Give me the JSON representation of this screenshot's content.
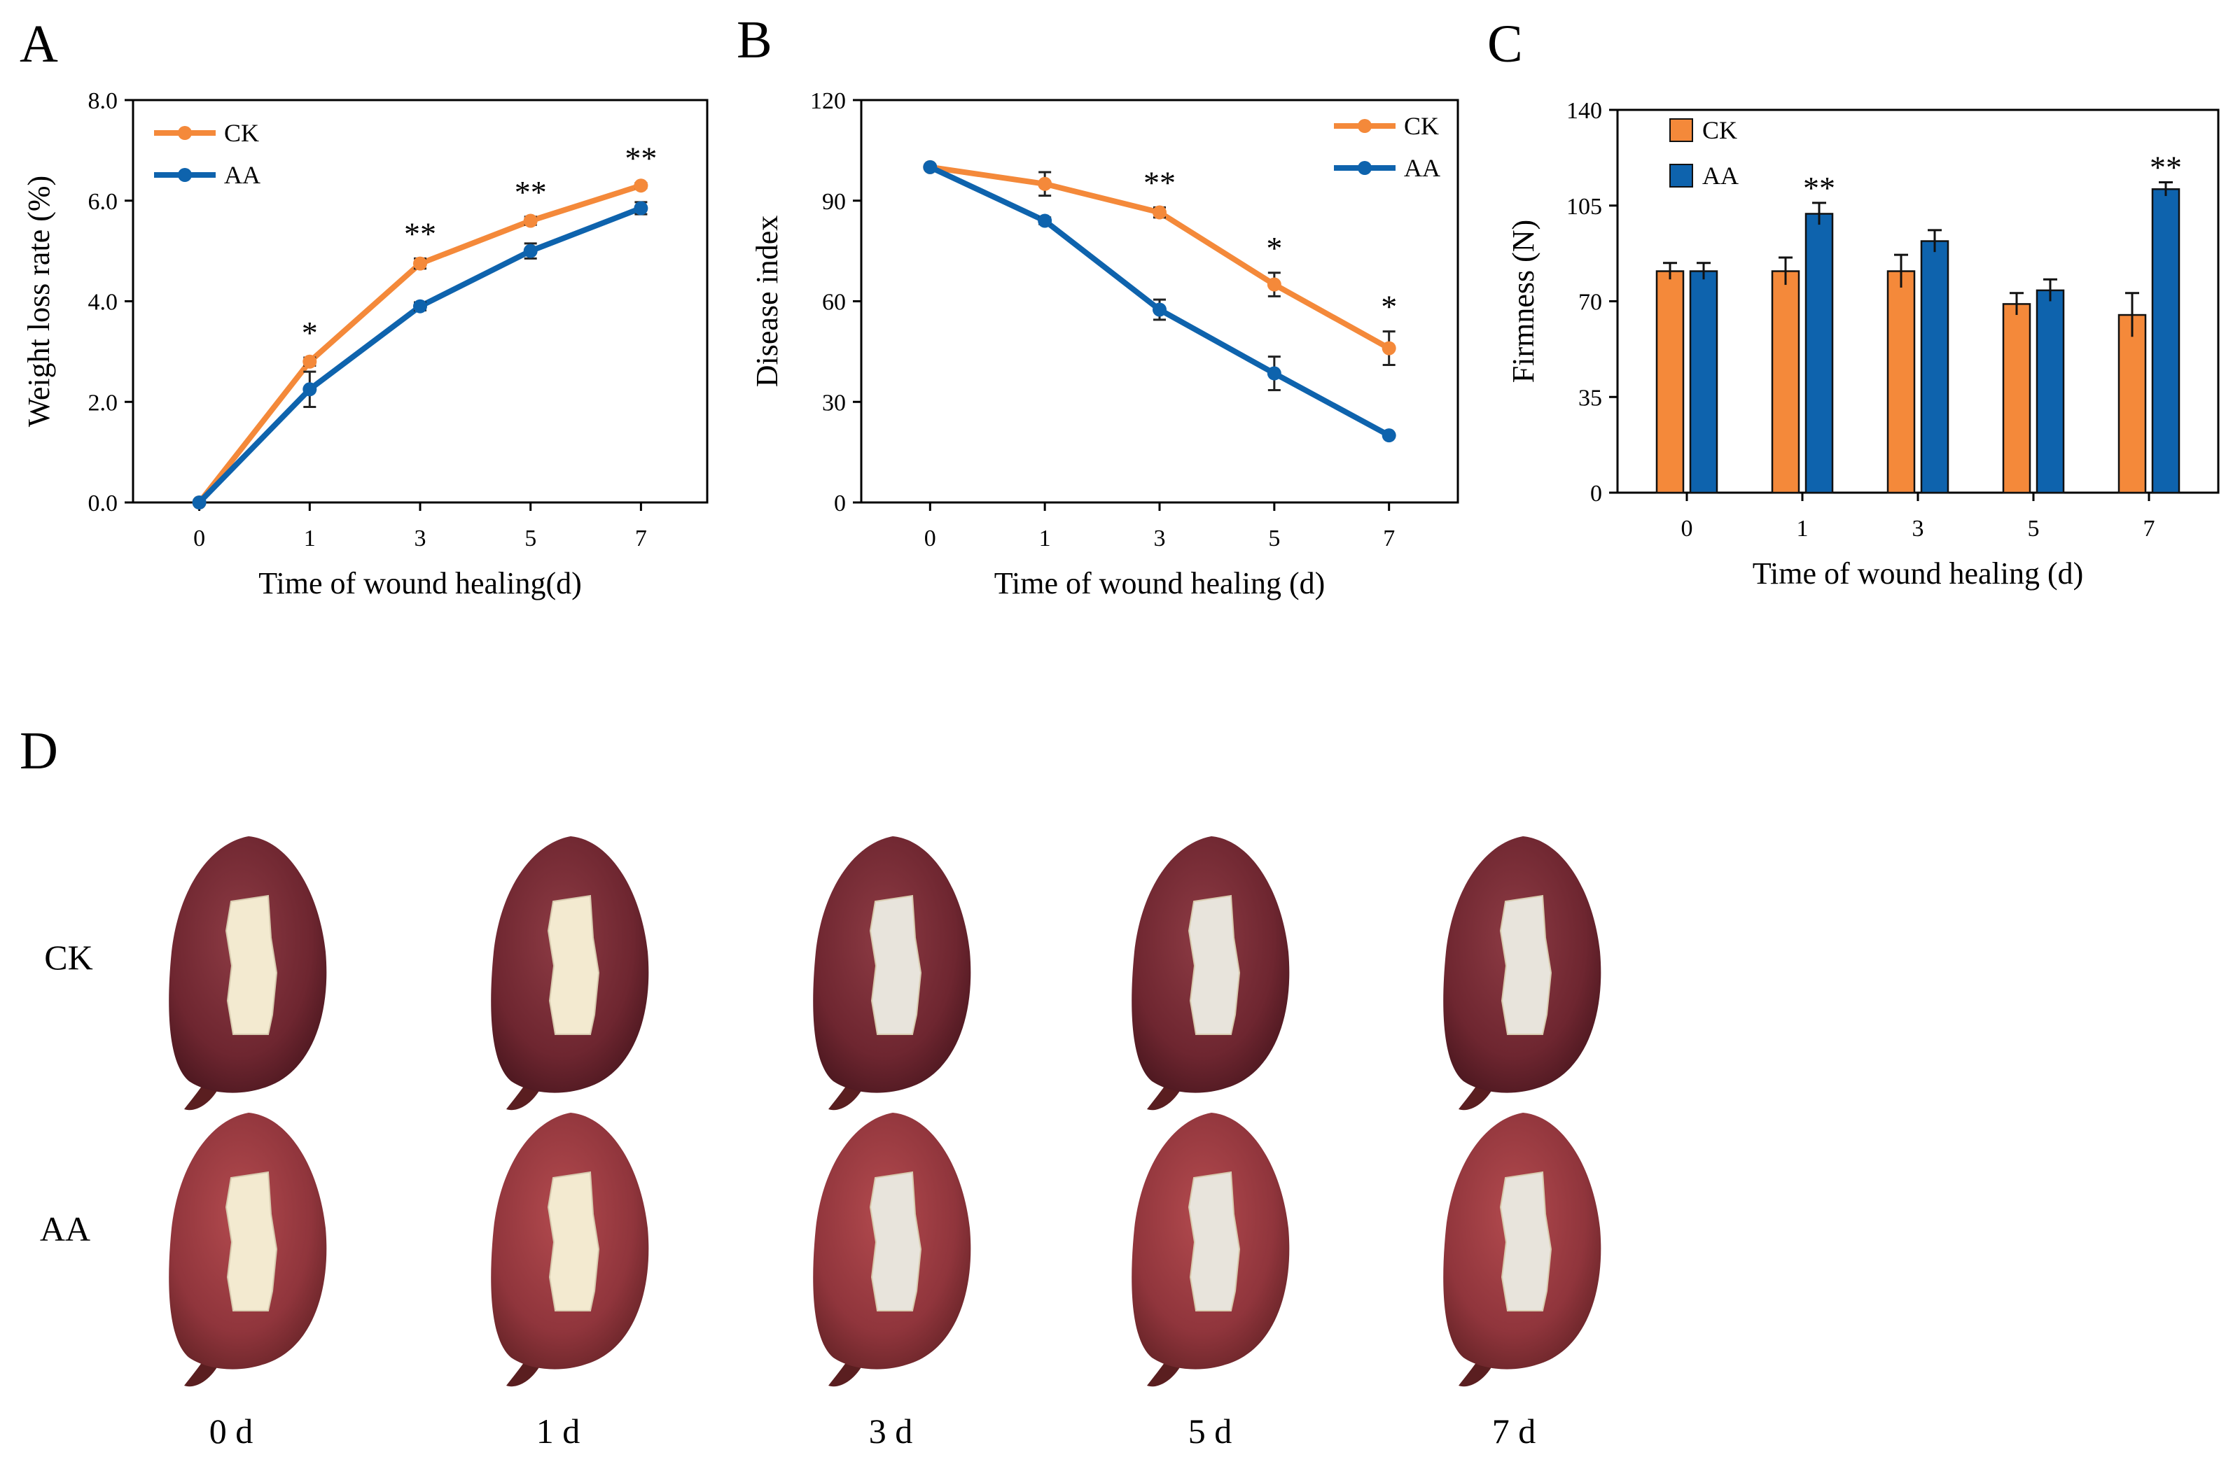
{
  "colors": {
    "ck": "#F4893A",
    "aa": "#0E63AD",
    "axis": "#000000"
  },
  "panels": {
    "A": {
      "letter": "A"
    },
    "B": {
      "letter": "B"
    },
    "C": {
      "letter": "C"
    },
    "D": {
      "letter": "D"
    }
  },
  "chart_data": [
    {
      "id": "A",
      "type": "line",
      "title": "",
      "xlabel": "Time of wound healing(d)",
      "ylabel": "Weight loss rate (%)",
      "categories": [
        "0",
        "1",
        "3",
        "5",
        "7"
      ],
      "ylim": [
        0,
        8
      ],
      "yticks": [
        "0.0",
        "2.0",
        "4.0",
        "6.0",
        "8.0"
      ],
      "legend": "top-left",
      "series": [
        {
          "name": "CK",
          "values": [
            0,
            2.8,
            4.75,
            5.6,
            6.3
          ],
          "errors": [
            0,
            0.08,
            0.1,
            0.08,
            0.05
          ]
        },
        {
          "name": "AA",
          "values": [
            0,
            2.25,
            3.9,
            5.0,
            5.85
          ],
          "errors": [
            0,
            0.35,
            0.08,
            0.15,
            0.12
          ]
        }
      ],
      "significance": [
        "",
        "*",
        "**",
        "**",
        "**"
      ]
    },
    {
      "id": "B",
      "type": "line",
      "title": "",
      "xlabel": "Time of wound healing (d)",
      "ylabel": "Disease index",
      "categories": [
        "0",
        "1",
        "3",
        "5",
        "7"
      ],
      "ylim": [
        0,
        120
      ],
      "yticks": [
        "0",
        "30",
        "60",
        "90",
        "120"
      ],
      "legend": "top-right",
      "series": [
        {
          "name": "CK",
          "values": [
            100,
            95,
            86.5,
            65,
            46
          ],
          "errors": [
            0,
            3.5,
            1.5,
            3.5,
            5
          ]
        },
        {
          "name": "AA",
          "values": [
            100,
            84,
            57.5,
            38.5,
            20
          ],
          "errors": [
            0,
            1,
            3,
            5,
            0.5
          ]
        }
      ],
      "significance": [
        "",
        "",
        "**",
        "*",
        "*"
      ]
    },
    {
      "id": "C",
      "type": "bar",
      "title": "",
      "xlabel": "Time of wound healing (d)",
      "ylabel": "Firmness (N)",
      "categories": [
        "0",
        "1",
        "3",
        "5",
        "7"
      ],
      "ylim": [
        0,
        140
      ],
      "yticks": [
        "0",
        "35",
        "70",
        "105",
        "140"
      ],
      "legend": "top-left",
      "series": [
        {
          "name": "CK",
          "values": [
            81,
            81,
            81,
            69,
            65
          ],
          "errors": [
            3,
            5,
            6,
            4,
            8
          ]
        },
        {
          "name": "AA",
          "values": [
            81,
            102,
            92,
            74,
            111
          ],
          "errors": [
            3,
            4,
            4,
            4,
            2.5
          ]
        }
      ],
      "significance": [
        "",
        "**",
        "",
        "",
        "**"
      ]
    }
  ],
  "photos": {
    "row_labels": [
      "CK",
      "AA"
    ],
    "col_labels": [
      "0 d",
      "1 d",
      "3 d",
      "5 d",
      "7 d"
    ]
  }
}
